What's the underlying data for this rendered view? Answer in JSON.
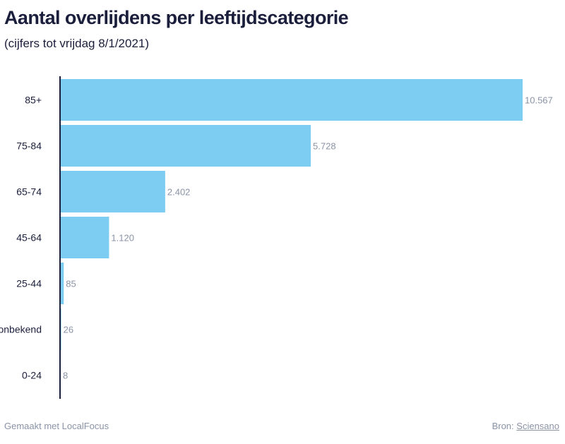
{
  "chart_data": {
    "type": "bar",
    "orientation": "horizontal",
    "title": "Aantal overlijdens per leeftijdscategorie",
    "subtitle": "(cijfers tot vrijdag 8/1/2021)",
    "categories": [
      "85+",
      "75-84",
      "65-74",
      "45-64",
      "25-44",
      "onbekend",
      "0-24"
    ],
    "values": [
      10567,
      5728,
      2402,
      1120,
      85,
      26,
      8
    ],
    "value_labels": [
      "10.567",
      "5.728",
      "2.402",
      "1.120",
      "85",
      "26",
      "8"
    ],
    "xlim": [
      0,
      10567
    ],
    "grid": false,
    "bar_color": "#7dcdf3"
  },
  "footer": {
    "credit": "Gemaakt met LocalFocus",
    "source_prefix": "Bron:",
    "source_name": "Sciensano"
  }
}
